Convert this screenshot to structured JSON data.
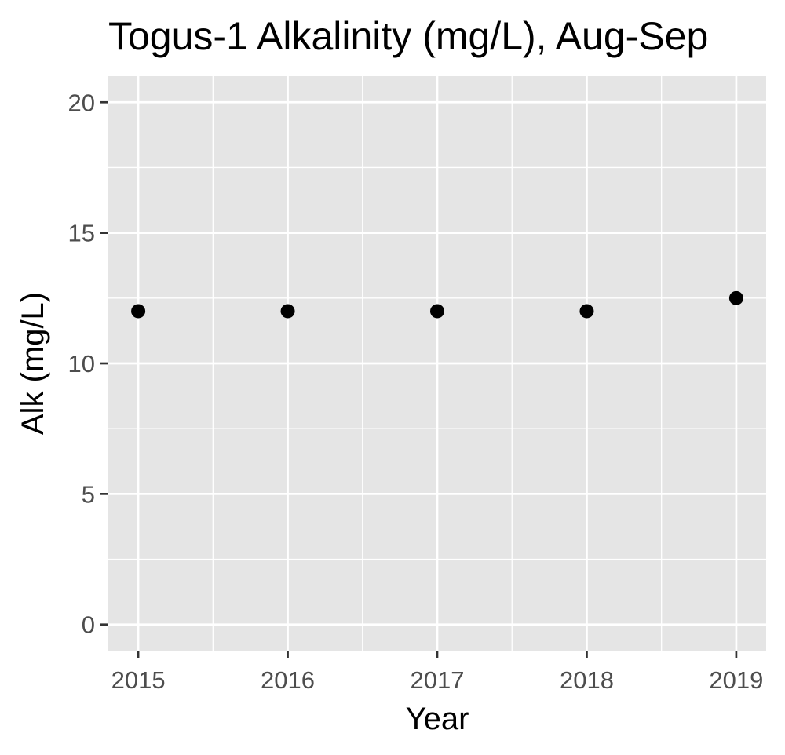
{
  "chart_data": {
    "type": "scatter",
    "title": "Togus-1 Alkalinity (mg/L), Aug-Sep",
    "xlabel": "Year",
    "ylabel": "Alk (mg/L)",
    "x": [
      2015,
      2016,
      2017,
      2018,
      2019
    ],
    "y": [
      12,
      12,
      12,
      12,
      12.5
    ],
    "x_ticks": [
      "2015",
      "2016",
      "2017",
      "2018",
      "2019"
    ],
    "y_ticks": [
      "0",
      "5",
      "10",
      "15",
      "20"
    ],
    "xlim": [
      2014.8,
      2019.2
    ],
    "ylim": [
      -1,
      21
    ],
    "grid": true,
    "legend": "none",
    "colors": {
      "panel_background": "#E5E5E5",
      "grid": "#FFFFFF",
      "point": "#000000",
      "tick_text": "#4D4D4D",
      "tick_mark": "#333333"
    }
  }
}
